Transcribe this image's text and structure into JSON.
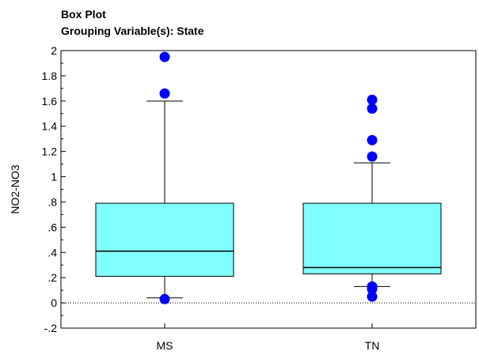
{
  "chart_data": {
    "type": "box",
    "title": "Box Plot",
    "subtitle": "Grouping Variable(s): State",
    "xlabel": "",
    "ylabel": "NO2-NO3",
    "ylim": [
      -0.2,
      2.0
    ],
    "yticks": [
      {
        "value": 2.0,
        "label": "2"
      },
      {
        "value": 1.8,
        "label": "1.8"
      },
      {
        "value": 1.6,
        "label": "1.6"
      },
      {
        "value": 1.4,
        "label": "1.4"
      },
      {
        "value": 1.2,
        "label": "1.2"
      },
      {
        "value": 1.0,
        "label": "1"
      },
      {
        "value": 0.8,
        "label": ".8"
      },
      {
        "value": 0.6,
        "label": ".6"
      },
      {
        "value": 0.4,
        "label": ".4"
      },
      {
        "value": 0.2,
        "label": ".2"
      },
      {
        "value": 0.0,
        "label": "0"
      },
      {
        "value": -0.2,
        "label": "-.2"
      }
    ],
    "reference_line": 0,
    "grid": false,
    "box_color": "#80ffff",
    "outlier_color": "#0000ff",
    "categories": [
      "MS",
      "TN"
    ],
    "boxes": [
      {
        "category": "MS",
        "whisker_low": 0.04,
        "q1": 0.21,
        "median": 0.41,
        "q3": 0.79,
        "whisker_high": 1.6,
        "outliers": [
          1.95,
          1.66,
          0.03
        ]
      },
      {
        "category": "TN",
        "whisker_low": 0.13,
        "q1": 0.23,
        "median": 0.28,
        "q3": 0.79,
        "whisker_high": 1.11,
        "outliers": [
          1.61,
          1.54,
          1.29,
          1.16,
          0.13,
          0.11,
          0.05
        ]
      }
    ]
  }
}
